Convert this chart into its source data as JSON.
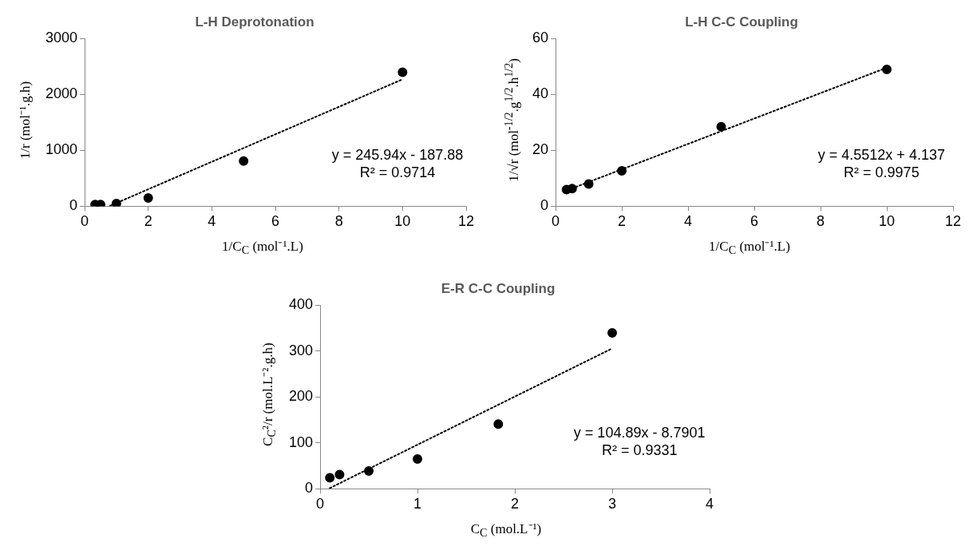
{
  "chart_data": [
    {
      "type": "scatter",
      "title": "L-H Deprotonation",
      "xlabel": "1/C$_{C}$ (mol⁻¹.L)",
      "ylabel": "1/r (mol⁻¹.g.h)",
      "xlim": [
        0,
        12
      ],
      "xticks": [
        0,
        2,
        4,
        6,
        8,
        10,
        12
      ],
      "ylim": [
        0,
        3000
      ],
      "yticks": [
        0,
        1000,
        2000,
        3000
      ],
      "marker": "circle",
      "annotations": [
        "y = 245.94x - 187.88",
        "R² = 0.9714"
      ],
      "series": [
        {
          "color": "#000000",
          "x": [
            0.33,
            0.5,
            1,
            2,
            5,
            10
          ],
          "values": [
            30,
            30,
            50,
            150,
            810,
            2400
          ]
        },
        {
          "type": "line",
          "color": "#000000",
          "line_style": "dotted",
          "marker": "none",
          "x": [
            0.8,
            10
          ],
          "values": [
            9,
            2272
          ]
        }
      ]
    },
    {
      "type": "scatter",
      "title": "L-H C-C Coupling",
      "xlabel": "1/C$_{C}$ (mol⁻¹.L)",
      "ylabel": "1/√r (mol$^{-1/2}$.g$^{1/2}$.h$^{1/2}$)",
      "xlim": [
        0,
        12
      ],
      "xticks": [
        0,
        2,
        4,
        6,
        8,
        10,
        12
      ],
      "ylim": [
        0,
        60
      ],
      "yticks": [
        0,
        20,
        40,
        60
      ],
      "marker": "circle",
      "annotations": [
        "y = 4.5512x + 4.137",
        "R² = 0.9975"
      ],
      "series": [
        {
          "color": "#000000",
          "x": [
            0.33,
            0.5,
            1,
            2,
            5,
            10
          ],
          "values": [
            6,
            6.3,
            8,
            12.7,
            28.5,
            49
          ]
        },
        {
          "type": "line",
          "color": "#000000",
          "line_style": "dotted",
          "marker": "none",
          "x": [
            0.5,
            10
          ],
          "values": [
            6.4,
            49.6
          ]
        }
      ]
    },
    {
      "type": "scatter",
      "title": "E-R C-C Coupling",
      "xlabel": "C$_{C}$ (mol.L⁻¹)",
      "ylabel": "C$_{C}$²/r (mol.L⁻².g.h)",
      "xlim": [
        0,
        4
      ],
      "xticks": [
        0,
        1,
        2,
        3,
        4
      ],
      "ylim": [
        0,
        400
      ],
      "yticks": [
        0,
        100,
        200,
        300,
        400
      ],
      "marker": "circle",
      "annotations": [
        "y = 104.89x - 8.7901",
        "R² = 0.9331"
      ],
      "series": [
        {
          "color": "#000000",
          "x": [
            0.1,
            0.2,
            0.5,
            1,
            1.83,
            3
          ],
          "values": [
            24,
            31,
            39,
            65,
            141,
            340
          ]
        },
        {
          "type": "line",
          "color": "#000000",
          "line_style": "dotted",
          "marker": "none",
          "x": [
            0.1,
            3
          ],
          "values": [
            1.7,
            306
          ]
        }
      ]
    }
  ]
}
